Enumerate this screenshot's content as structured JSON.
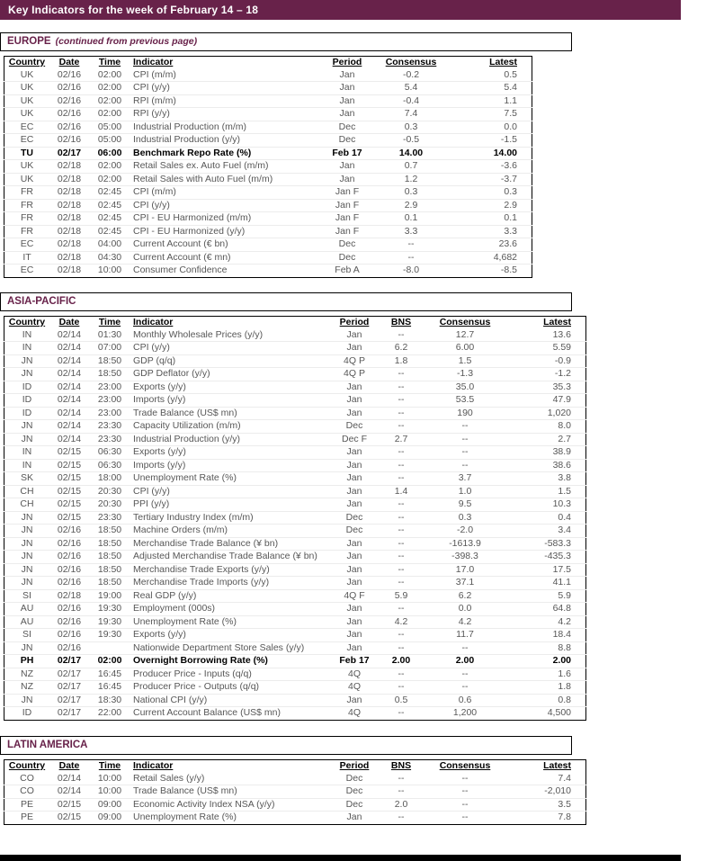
{
  "colors": {
    "accent": "#68224A"
  },
  "banner": {
    "title": "Key Indicators for the week of February 14 – 18"
  },
  "sections": [
    {
      "title": "EUROPE",
      "subtitle": "(continued from previous page)",
      "columns": [
        {
          "key": "country",
          "label": "Country"
        },
        {
          "key": "date",
          "label": "Date"
        },
        {
          "key": "time",
          "label": "Time"
        },
        {
          "key": "indicator",
          "label": "Indicator"
        },
        {
          "key": "period",
          "label": "Period"
        },
        {
          "key": "consensus",
          "label": "Consensus"
        },
        {
          "key": "latest",
          "label": "Latest"
        }
      ],
      "rows": [
        {
          "bold": false,
          "cells": [
            "UK",
            "02/16",
            "02:00",
            "CPI (m/m)",
            "Jan",
            "-0.2",
            "0.5"
          ]
        },
        {
          "bold": false,
          "cells": [
            "UK",
            "02/16",
            "02:00",
            "CPI (y/y)",
            "Jan",
            "5.4",
            "5.4"
          ]
        },
        {
          "bold": false,
          "cells": [
            "UK",
            "02/16",
            "02:00",
            "RPI (m/m)",
            "Jan",
            "-0.4",
            "1.1"
          ]
        },
        {
          "bold": false,
          "cells": [
            "UK",
            "02/16",
            "02:00",
            "RPI (y/y)",
            "Jan",
            "7.4",
            "7.5"
          ]
        },
        {
          "bold": false,
          "cells": [
            "EC",
            "02/16",
            "05:00",
            "Industrial Production (m/m)",
            "Dec",
            "0.3",
            "0.0"
          ]
        },
        {
          "bold": false,
          "cells": [
            "EC",
            "02/16",
            "05:00",
            "Industrial Production (y/y)",
            "Dec",
            "-0.5",
            "-1.5"
          ]
        },
        {
          "bold": true,
          "cells": [
            "TU",
            "02/17",
            "06:00",
            "Benchmark Repo Rate (%)",
            "Feb 17",
            "14.00",
            "14.00"
          ]
        },
        {
          "bold": false,
          "cells": [
            "UK",
            "02/18",
            "02:00",
            "Retail Sales ex. Auto Fuel (m/m)",
            "Jan",
            "0.7",
            "-3.6"
          ]
        },
        {
          "bold": false,
          "cells": [
            "UK",
            "02/18",
            "02:00",
            "Retail Sales with Auto Fuel (m/m)",
            "Jan",
            "1.2",
            "-3.7"
          ]
        },
        {
          "bold": false,
          "cells": [
            "FR",
            "02/18",
            "02:45",
            "CPI (m/m)",
            "Jan F",
            "0.3",
            "0.3"
          ]
        },
        {
          "bold": false,
          "cells": [
            "FR",
            "02/18",
            "02:45",
            "CPI (y/y)",
            "Jan F",
            "2.9",
            "2.9"
          ]
        },
        {
          "bold": false,
          "cells": [
            "FR",
            "02/18",
            "02:45",
            "CPI - EU Harmonized (m/m)",
            "Jan F",
            "0.1",
            "0.1"
          ]
        },
        {
          "bold": false,
          "cells": [
            "FR",
            "02/18",
            "02:45",
            "CPI - EU Harmonized (y/y)",
            "Jan F",
            "3.3",
            "3.3"
          ]
        },
        {
          "bold": false,
          "cells": [
            "EC",
            "02/18",
            "04:00",
            "Current Account (€ bn)",
            "Dec",
            "--",
            "23.6"
          ]
        },
        {
          "bold": false,
          "cells": [
            "IT",
            "02/18",
            "04:30",
            "Current Account (€ mn)",
            "Dec",
            "--",
            "4,682"
          ]
        },
        {
          "bold": false,
          "cells": [
            "EC",
            "02/18",
            "10:00",
            "Consumer Confidence",
            "Feb A",
            "-8.0",
            "-8.5"
          ]
        }
      ]
    },
    {
      "title": "ASIA-PACIFIC",
      "subtitle": "",
      "columns": [
        {
          "key": "country",
          "label": "Country"
        },
        {
          "key": "date",
          "label": "Date"
        },
        {
          "key": "time",
          "label": "Time"
        },
        {
          "key": "indicator",
          "label": "Indicator"
        },
        {
          "key": "period",
          "label": "Period"
        },
        {
          "key": "bns",
          "label": "BNS"
        },
        {
          "key": "consensus",
          "label": "Consensus"
        },
        {
          "key": "latest",
          "label": "Latest"
        }
      ],
      "rows": [
        {
          "bold": false,
          "cells": [
            "IN",
            "02/14",
            "01:30",
            "Monthly Wholesale Prices (y/y)",
            "Jan",
            "--",
            "12.7",
            "13.6"
          ]
        },
        {
          "bold": false,
          "cells": [
            "IN",
            "02/14",
            "07:00",
            "CPI (y/y)",
            "Jan",
            "6.2",
            "6.00",
            "5.59"
          ]
        },
        {
          "bold": false,
          "cells": [
            "JN",
            "02/14",
            "18:50",
            "GDP (q/q)",
            "4Q P",
            "1.8",
            "1.5",
            "-0.9"
          ]
        },
        {
          "bold": false,
          "cells": [
            "JN",
            "02/14",
            "18:50",
            "GDP Deflator (y/y)",
            "4Q P",
            "--",
            "-1.3",
            "-1.2"
          ]
        },
        {
          "bold": false,
          "cells": [
            "ID",
            "02/14",
            "23:00",
            "Exports (y/y)",
            "Jan",
            "--",
            "35.0",
            "35.3"
          ]
        },
        {
          "bold": false,
          "cells": [
            "ID",
            "02/14",
            "23:00",
            "Imports (y/y)",
            "Jan",
            "--",
            "53.5",
            "47.9"
          ]
        },
        {
          "bold": false,
          "cells": [
            "ID",
            "02/14",
            "23:00",
            "Trade Balance (US$ mn)",
            "Jan",
            "--",
            "190",
            "1,020"
          ]
        },
        {
          "bold": false,
          "cells": [
            "JN",
            "02/14",
            "23:30",
            "Capacity Utilization (m/m)",
            "Dec",
            "--",
            "--",
            "8.0"
          ]
        },
        {
          "bold": false,
          "cells": [
            "JN",
            "02/14",
            "23:30",
            "Industrial Production (y/y)",
            "Dec F",
            "2.7",
            "--",
            "2.7"
          ]
        },
        {
          "bold": false,
          "cells": [
            "IN",
            "02/15",
            "06:30",
            "Exports (y/y)",
            "Jan",
            "--",
            "--",
            "38.9"
          ]
        },
        {
          "bold": false,
          "cells": [
            "IN",
            "02/15",
            "06:30",
            "Imports (y/y)",
            "Jan",
            "--",
            "--",
            "38.6"
          ]
        },
        {
          "bold": false,
          "cells": [
            "SK",
            "02/15",
            "18:00",
            "Unemployment Rate (%)",
            "Jan",
            "--",
            "3.7",
            "3.8"
          ]
        },
        {
          "bold": false,
          "cells": [
            "CH",
            "02/15",
            "20:30",
            "CPI (y/y)",
            "Jan",
            "1.4",
            "1.0",
            "1.5"
          ]
        },
        {
          "bold": false,
          "cells": [
            "CH",
            "02/15",
            "20:30",
            "PPI (y/y)",
            "Jan",
            "--",
            "9.5",
            "10.3"
          ]
        },
        {
          "bold": false,
          "cells": [
            "JN",
            "02/15",
            "23:30",
            "Tertiary Industry Index (m/m)",
            "Dec",
            "--",
            "0.3",
            "0.4"
          ]
        },
        {
          "bold": false,
          "cells": [
            "JN",
            "02/16",
            "18:50",
            "Machine Orders (m/m)",
            "Dec",
            "--",
            "-2.0",
            "3.4"
          ]
        },
        {
          "bold": false,
          "cells": [
            "JN",
            "02/16",
            "18:50",
            "Merchandise Trade Balance (¥ bn)",
            "Jan",
            "--",
            "-1613.9",
            "-583.3"
          ]
        },
        {
          "bold": false,
          "cells": [
            "JN",
            "02/16",
            "18:50",
            "Adjusted Merchandise Trade Balance (¥ bn)",
            "Jan",
            "--",
            "-398.3",
            "-435.3"
          ]
        },
        {
          "bold": false,
          "cells": [
            "JN",
            "02/16",
            "18:50",
            "Merchandise Trade Exports (y/y)",
            "Jan",
            "--",
            "17.0",
            "17.5"
          ]
        },
        {
          "bold": false,
          "cells": [
            "JN",
            "02/16",
            "18:50",
            "Merchandise Trade Imports (y/y)",
            "Jan",
            "--",
            "37.1",
            "41.1"
          ]
        },
        {
          "bold": false,
          "cells": [
            "SI",
            "02/18",
            "19:00",
            "Real GDP (y/y)",
            "4Q F",
            "5.9",
            "6.2",
            "5.9"
          ]
        },
        {
          "bold": false,
          "cells": [
            "AU",
            "02/16",
            "19:30",
            "Employment (000s)",
            "Jan",
            "--",
            "0.0",
            "64.8"
          ]
        },
        {
          "bold": false,
          "cells": [
            "AU",
            "02/16",
            "19:30",
            "Unemployment Rate (%)",
            "Jan",
            "4.2",
            "4.2",
            "4.2"
          ]
        },
        {
          "bold": false,
          "cells": [
            "SI",
            "02/16",
            "19:30",
            "Exports (y/y)",
            "Jan",
            "--",
            "11.7",
            "18.4"
          ]
        },
        {
          "bold": false,
          "cells": [
            "JN",
            "02/16",
            "",
            "Nationwide Department Store Sales (y/y)",
            "Jan",
            "--",
            "--",
            "8.8"
          ]
        },
        {
          "bold": true,
          "cells": [
            "PH",
            "02/17",
            "02:00",
            "Overnight Borrowing Rate (%)",
            "Feb 17",
            "2.00",
            "2.00",
            "2.00"
          ]
        },
        {
          "bold": false,
          "cells": [
            "NZ",
            "02/17",
            "16:45",
            "Producer Price - Inputs (q/q)",
            "4Q",
            "--",
            "--",
            "1.6"
          ]
        },
        {
          "bold": false,
          "cells": [
            "NZ",
            "02/17",
            "16:45",
            "Producer Price - Outputs (q/q)",
            "4Q",
            "--",
            "--",
            "1.8"
          ]
        },
        {
          "bold": false,
          "cells": [
            "JN",
            "02/17",
            "18:30",
            "National CPI (y/y)",
            "Jan",
            "0.5",
            "0.6",
            "0.8"
          ]
        },
        {
          "bold": false,
          "cells": [
            "ID",
            "02/17",
            "22:00",
            "Current Account Balance (US$ mn)",
            "4Q",
            "--",
            "1,200",
            "4,500"
          ]
        }
      ]
    },
    {
      "title": "LATIN AMERICA",
      "subtitle": "",
      "columns": [
        {
          "key": "country",
          "label": "Country"
        },
        {
          "key": "date",
          "label": "Date"
        },
        {
          "key": "time",
          "label": "Time"
        },
        {
          "key": "indicator",
          "label": "Indicator"
        },
        {
          "key": "period",
          "label": "Period"
        },
        {
          "key": "bns",
          "label": "BNS"
        },
        {
          "key": "consensus",
          "label": "Consensus"
        },
        {
          "key": "latest",
          "label": "Latest"
        }
      ],
      "rows": [
        {
          "bold": false,
          "cells": [
            "CO",
            "02/14",
            "10:00",
            "Retail Sales (y/y)",
            "Dec",
            "--",
            "--",
            "7.4"
          ]
        },
        {
          "bold": false,
          "cells": [
            "CO",
            "02/14",
            "10:00",
            "Trade Balance (US$ mn)",
            "Dec",
            "--",
            "--",
            "-2,010"
          ]
        },
        {
          "bold": false,
          "cells": [
            "PE",
            "02/15",
            "09:00",
            "Economic Activity Index NSA (y/y)",
            "Dec",
            "2.0",
            "--",
            "3.5"
          ]
        },
        {
          "bold": false,
          "cells": [
            "PE",
            "02/15",
            "09:00",
            "Unemployment Rate (%)",
            "Jan",
            "--",
            "--",
            "7.8"
          ]
        }
      ]
    }
  ]
}
